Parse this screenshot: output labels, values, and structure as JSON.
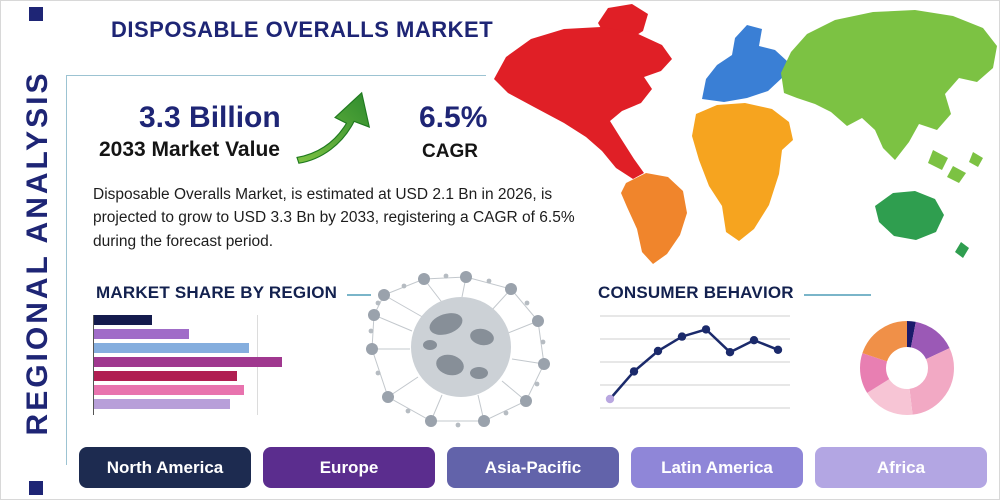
{
  "page": {
    "title": "DISPOSABLE OVERALLS MARKET",
    "side_label": "REGIONAL ANALYSIS"
  },
  "stats": {
    "value": "3.3 Billion",
    "value_label": "2033 Market Value",
    "cagr": "6.5%",
    "cagr_label": "CAGR",
    "description": "Disposable Overalls Market, is estimated at USD 2.1 Bn in 2026, is projected to grow to USD 3.3 Bn by 2033, registering a CAGR of 6.5% during the forecast period."
  },
  "sections": {
    "market_share": "MARKET SHARE BY REGION",
    "consumer_behavior": "CONSUMER BEHAVIOR"
  },
  "regions": [
    {
      "label": "North America",
      "color": "#1d2b50"
    },
    {
      "label": "Europe",
      "color": "#5b2d8e"
    },
    {
      "label": "Asia-Pacific",
      "color": "#6263aa"
    },
    {
      "label": "Latin America",
      "color": "#8f86d8"
    },
    {
      "label": "Africa",
      "color": "#b3a6e3"
    }
  ],
  "map_colors": {
    "north_america": "#e01f26",
    "south_america": "#f0852c",
    "europe": "#3a7fd5",
    "africa": "#f6a41f",
    "asia": "#7cc243",
    "oceania": "#2f9e4f"
  },
  "accent": {
    "rule_color": "#7ab5c9",
    "arrow_green": "#4caf3f",
    "navy": "#1e2575"
  },
  "chart_data": [
    {
      "type": "bar",
      "title": "MARKET SHARE BY REGION",
      "orientation": "horizontal",
      "values": [
        58,
        95,
        155,
        188,
        143,
        150,
        136
      ],
      "colors": [
        "#141b4d",
        "#a06cc8",
        "#85aede",
        "#a0388f",
        "#b01e51",
        "#e873ae",
        "#b89fd9"
      ],
      "xlim": [
        0,
        200
      ],
      "grid": true,
      "legend": "none"
    },
    {
      "type": "line",
      "title": "CONSUMER BEHAVIOR",
      "x": [
        1,
        2,
        3,
        4,
        5,
        6,
        7,
        8
      ],
      "values": [
        1.0,
        3.3,
        5.0,
        6.2,
        6.8,
        4.9,
        5.9,
        5.1
      ],
      "ylim": [
        0,
        8
      ],
      "line_color": "#1b2a6b",
      "first_point_color": "#b9a7e0",
      "grid": true,
      "legend": "none"
    },
    {
      "type": "pie",
      "donut": true,
      "slices": [
        {
          "value": 3,
          "color": "#1a1a6b"
        },
        {
          "value": 15,
          "color": "#9b59b6"
        },
        {
          "value": 30,
          "color": "#f2a9c4"
        },
        {
          "value": 18,
          "color": "#f7c5d5"
        },
        {
          "value": 14,
          "color": "#e87fb2"
        },
        {
          "value": 20,
          "color": "#f09048"
        }
      ],
      "legend": "none"
    }
  ]
}
